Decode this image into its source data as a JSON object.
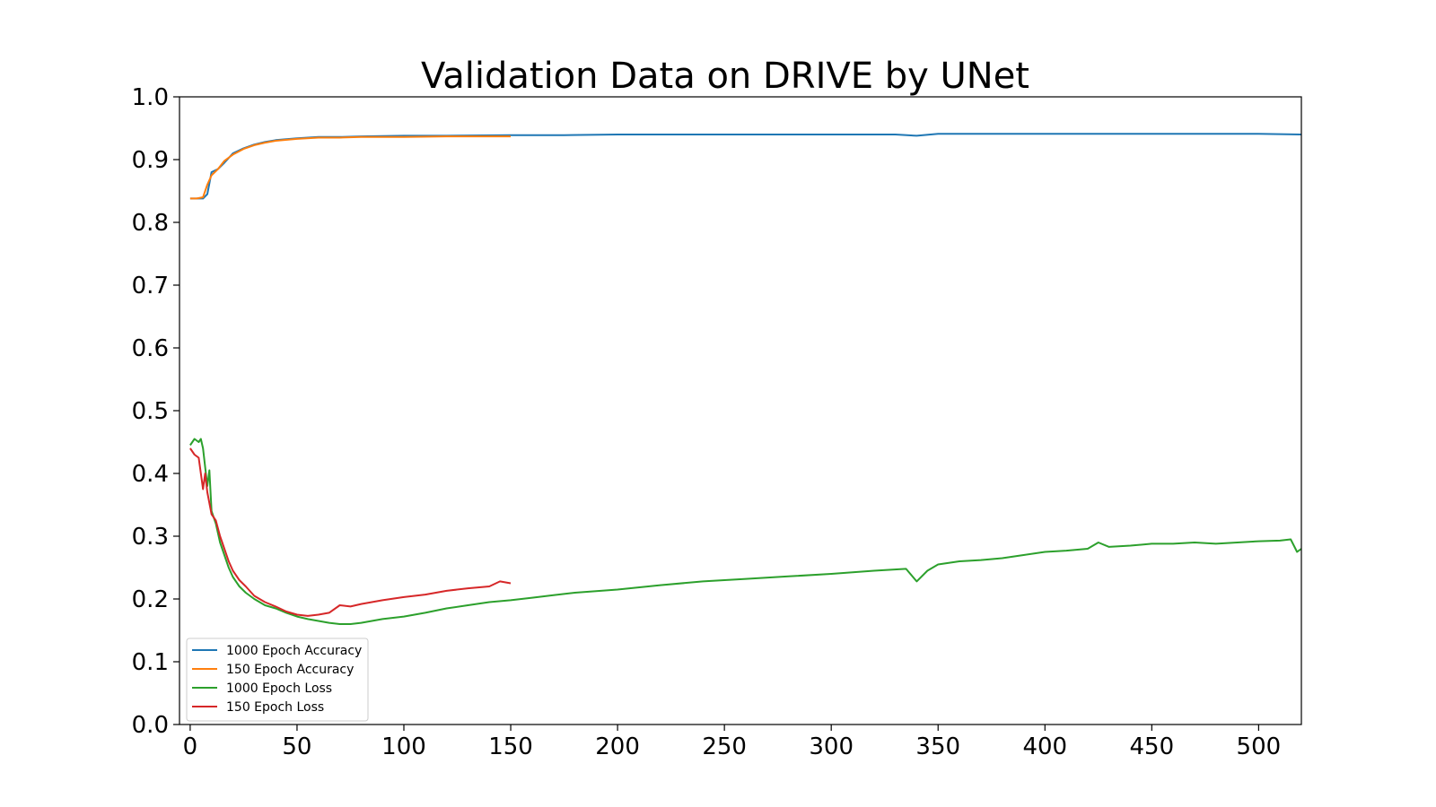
{
  "chart_data": {
    "type": "line",
    "title": "Validation Data on DRIVE by UNet",
    "xlabel": "",
    "ylabel": "",
    "xlim": [
      -5,
      520
    ],
    "ylim": [
      0.0,
      1.0
    ],
    "xticks": [
      0,
      50,
      100,
      150,
      200,
      250,
      300,
      350,
      400,
      450,
      500
    ],
    "yticks": [
      0.0,
      0.1,
      0.2,
      0.3,
      0.4,
      0.5,
      0.6,
      0.7,
      0.8,
      0.9,
      1.0
    ],
    "xtick_labels": [
      "0",
      "50",
      "100",
      "150",
      "200",
      "250",
      "300",
      "350",
      "400",
      "450",
      "500"
    ],
    "ytick_labels": [
      "0.0",
      "0.1",
      "0.2",
      "0.3",
      "0.4",
      "0.5",
      "0.6",
      "0.7",
      "0.8",
      "0.9",
      "1.0"
    ],
    "grid": false,
    "legend_position": "bottom-left",
    "series": [
      {
        "name": "1000 Epoch Accuracy",
        "color": "#1f77b4",
        "points": [
          [
            0,
            0.838
          ],
          [
            3,
            0.838
          ],
          [
            6,
            0.838
          ],
          [
            8,
            0.845
          ],
          [
            10,
            0.88
          ],
          [
            13,
            0.885
          ],
          [
            16,
            0.895
          ],
          [
            20,
            0.91
          ],
          [
            25,
            0.918
          ],
          [
            30,
            0.924
          ],
          [
            35,
            0.928
          ],
          [
            40,
            0.931
          ],
          [
            50,
            0.934
          ],
          [
            60,
            0.936
          ],
          [
            70,
            0.936
          ],
          [
            80,
            0.937
          ],
          [
            100,
            0.938
          ],
          [
            120,
            0.938
          ],
          [
            150,
            0.939
          ],
          [
            175,
            0.939
          ],
          [
            200,
            0.94
          ],
          [
            250,
            0.94
          ],
          [
            300,
            0.94
          ],
          [
            330,
            0.94
          ],
          [
            340,
            0.938
          ],
          [
            350,
            0.941
          ],
          [
            400,
            0.941
          ],
          [
            450,
            0.941
          ],
          [
            500,
            0.941
          ],
          [
            520,
            0.94
          ]
        ]
      },
      {
        "name": "150 Epoch Accuracy",
        "color": "#ff7f0e",
        "points": [
          [
            0,
            0.838
          ],
          [
            3,
            0.838
          ],
          [
            6,
            0.84
          ],
          [
            8,
            0.86
          ],
          [
            10,
            0.875
          ],
          [
            13,
            0.885
          ],
          [
            16,
            0.898
          ],
          [
            20,
            0.908
          ],
          [
            25,
            0.917
          ],
          [
            30,
            0.923
          ],
          [
            35,
            0.927
          ],
          [
            40,
            0.93
          ],
          [
            50,
            0.933
          ],
          [
            60,
            0.935
          ],
          [
            70,
            0.935
          ],
          [
            80,
            0.936
          ],
          [
            100,
            0.936
          ],
          [
            120,
            0.937
          ],
          [
            140,
            0.937
          ],
          [
            150,
            0.937
          ]
        ]
      },
      {
        "name": "1000 Epoch Loss",
        "color": "#2ca02c",
        "points": [
          [
            0,
            0.445
          ],
          [
            2,
            0.455
          ],
          [
            4,
            0.45
          ],
          [
            5,
            0.455
          ],
          [
            6,
            0.44
          ],
          [
            7,
            0.41
          ],
          [
            8,
            0.38
          ],
          [
            9,
            0.405
          ],
          [
            10,
            0.34
          ],
          [
            12,
            0.32
          ],
          [
            14,
            0.29
          ],
          [
            16,
            0.27
          ],
          [
            18,
            0.25
          ],
          [
            20,
            0.235
          ],
          [
            23,
            0.22
          ],
          [
            26,
            0.21
          ],
          [
            30,
            0.2
          ],
          [
            35,
            0.19
          ],
          [
            40,
            0.185
          ],
          [
            45,
            0.178
          ],
          [
            50,
            0.172
          ],
          [
            55,
            0.168
          ],
          [
            60,
            0.165
          ],
          [
            65,
            0.162
          ],
          [
            70,
            0.16
          ],
          [
            75,
            0.16
          ],
          [
            80,
            0.162
          ],
          [
            85,
            0.165
          ],
          [
            90,
            0.168
          ],
          [
            100,
            0.172
          ],
          [
            110,
            0.178
          ],
          [
            120,
            0.185
          ],
          [
            130,
            0.19
          ],
          [
            140,
            0.195
          ],
          [
            150,
            0.198
          ],
          [
            160,
            0.202
          ],
          [
            170,
            0.206
          ],
          [
            180,
            0.21
          ],
          [
            200,
            0.215
          ],
          [
            220,
            0.222
          ],
          [
            240,
            0.228
          ],
          [
            260,
            0.232
          ],
          [
            280,
            0.236
          ],
          [
            300,
            0.24
          ],
          [
            320,
            0.245
          ],
          [
            335,
            0.248
          ],
          [
            340,
            0.228
          ],
          [
            345,
            0.245
          ],
          [
            350,
            0.255
          ],
          [
            360,
            0.26
          ],
          [
            370,
            0.262
          ],
          [
            380,
            0.265
          ],
          [
            390,
            0.27
          ],
          [
            400,
            0.275
          ],
          [
            410,
            0.277
          ],
          [
            420,
            0.28
          ],
          [
            425,
            0.29
          ],
          [
            430,
            0.283
          ],
          [
            440,
            0.285
          ],
          [
            450,
            0.288
          ],
          [
            460,
            0.288
          ],
          [
            470,
            0.29
          ],
          [
            480,
            0.288
          ],
          [
            490,
            0.29
          ],
          [
            500,
            0.292
          ],
          [
            510,
            0.293
          ],
          [
            515,
            0.295
          ],
          [
            518,
            0.275
          ],
          [
            520,
            0.28
          ]
        ]
      },
      {
        "name": "150 Epoch Loss",
        "color": "#d62728",
        "points": [
          [
            0,
            0.44
          ],
          [
            2,
            0.43
          ],
          [
            4,
            0.425
          ],
          [
            5,
            0.4
          ],
          [
            6,
            0.375
          ],
          [
            7,
            0.4
          ],
          [
            8,
            0.37
          ],
          [
            10,
            0.335
          ],
          [
            12,
            0.325
          ],
          [
            14,
            0.3
          ],
          [
            16,
            0.28
          ],
          [
            18,
            0.26
          ],
          [
            20,
            0.245
          ],
          [
            23,
            0.23
          ],
          [
            26,
            0.22
          ],
          [
            30,
            0.205
          ],
          [
            35,
            0.195
          ],
          [
            40,
            0.188
          ],
          [
            45,
            0.18
          ],
          [
            50,
            0.175
          ],
          [
            55,
            0.173
          ],
          [
            60,
            0.175
          ],
          [
            65,
            0.178
          ],
          [
            70,
            0.19
          ],
          [
            75,
            0.188
          ],
          [
            80,
            0.192
          ],
          [
            90,
            0.198
          ],
          [
            100,
            0.203
          ],
          [
            110,
            0.207
          ],
          [
            120,
            0.213
          ],
          [
            130,
            0.217
          ],
          [
            140,
            0.22
          ],
          [
            145,
            0.228
          ],
          [
            150,
            0.225
          ]
        ]
      }
    ]
  }
}
